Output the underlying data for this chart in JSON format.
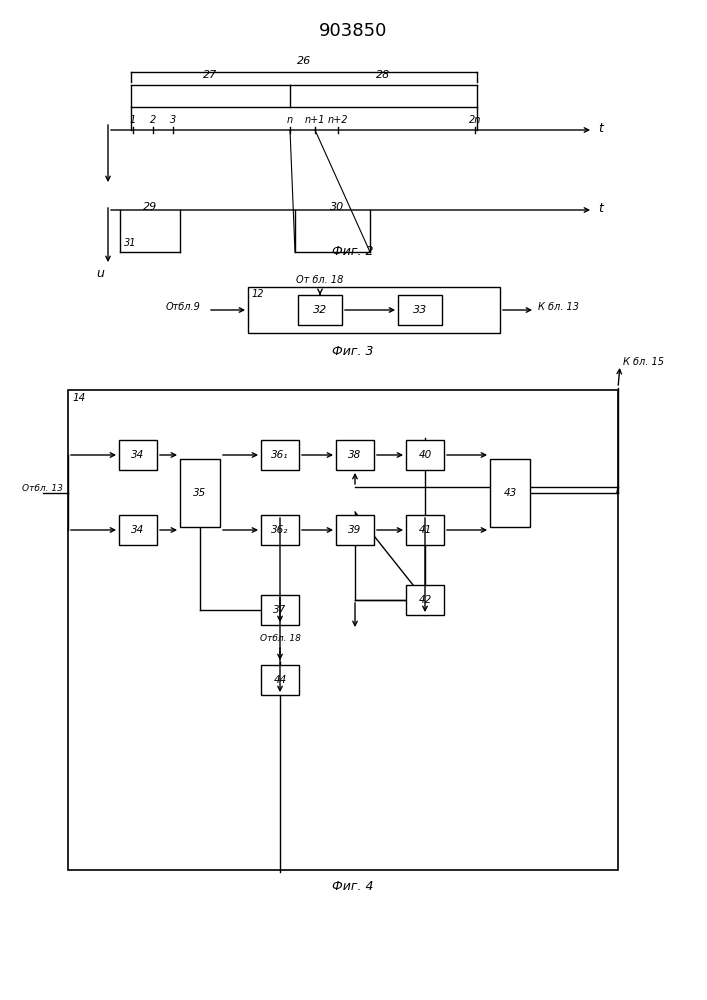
{
  "title": "903850",
  "bg_color": "#ffffff",
  "fig2_label": "Фиг. 2",
  "fig3_label": "Фиг. 3",
  "fig4_label": "Фиг. 4",
  "label26": "26",
  "label27": "27",
  "label28": "28",
  "label29": "29",
  "label30": "30",
  "label31": "31",
  "tick_labels": [
    "1",
    "2",
    "3",
    "n",
    "n+1",
    "n+2",
    "2n"
  ],
  "label_t": "t",
  "label_u": "u",
  "fig3_from9": "Отбл.9",
  "fig3_from18": "От бл. 18",
  "fig3_box12": "12",
  "fig3_b32": "32",
  "fig3_b33": "33",
  "fig3_to13": "К бл. 13",
  "fig4_from13": "Отбл. 13",
  "fig4_box14": "14",
  "fig4_b34a": "34",
  "fig4_b34b": "34",
  "fig4_b35": "35",
  "fig4_b361": "36₁",
  "fig4_b362": "36₂",
  "fig4_b37": "37",
  "fig4_b38": "38",
  "fig4_b39": "39",
  "fig4_b40": "40",
  "fig4_b41": "41",
  "fig4_b42": "42",
  "fig4_b43": "43",
  "fig4_b44": "44",
  "fig4_from18": "Отбл. 18",
  "fig4_to15": "К бл. 15"
}
